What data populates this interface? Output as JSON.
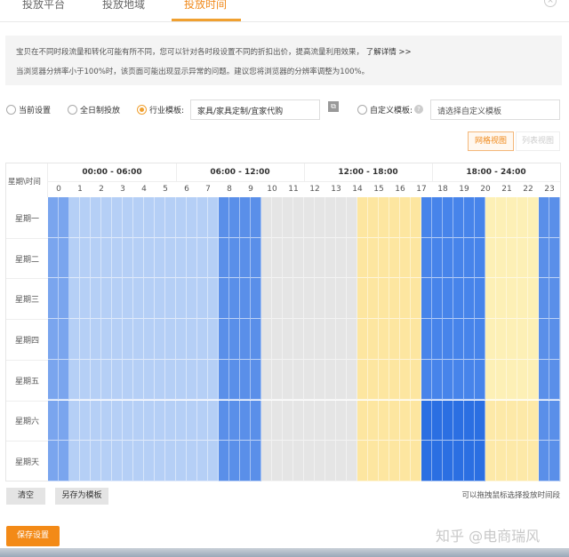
{
  "tabs": [
    {
      "label": "投放平台"
    },
    {
      "label": "投放地域"
    },
    {
      "label": "投放时间",
      "active": true
    }
  ],
  "info": {
    "line1": "宝贝在不同时段流量和转化可能有所不同，您可以针对各时段设置不同的折扣出价，提高流量利用效果，",
    "link": "了解详情 >>",
    "line2": "当浏览器分辨率小于100%时，该页面可能出现显示异常的问题。建议您将浏览器的分辨率调整为100%。"
  },
  "options": {
    "current": "当前设置",
    "fullday": "全日制投放",
    "industry": "行业模板:",
    "industry_value": "家具/家具定制/宜家代购",
    "custom": "自定义模板:",
    "custom_placeholder": "请选择自定义模板",
    "selected": "industry"
  },
  "view": {
    "grid": "网格视图",
    "list": "列表视图",
    "active": "grid"
  },
  "grid": {
    "corner": "星期\\时间",
    "ranges": [
      "00:00 - 06:00",
      "06:00 - 12:00",
      "12:00 - 18:00",
      "18:00 - 24:00"
    ],
    "hours": [
      "0",
      "1",
      "2",
      "3",
      "4",
      "5",
      "6",
      "7",
      "8",
      "9",
      "10",
      "11",
      "12",
      "13",
      "14",
      "15",
      "16",
      "17",
      "18",
      "19",
      "20",
      "21",
      "22",
      "23"
    ],
    "days": [
      "星期一",
      "星期二",
      "星期三",
      "星期四",
      "星期五",
      "星期六",
      "星期天"
    ],
    "levels": {
      "B": "#7aa5ee",
      "L": "#b5cff6",
      "M": "#5a8fe9",
      "G": "#e5e5e5",
      "Y": "#fde6a0",
      "D": "#4784ea",
      "X": "#2b6fe2",
      "y": "#fdf0b6",
      "z": "#fde9a8"
    },
    "rows": [
      "BBLLLLLLLLLLLLLLMMMMGGGGGGGGGYYYYYYDDDDDDyyyyyMM",
      "BBLLLLLLLLLLLLLLMMMMGGGGGGGGGYYYYYYDDDDDDyyyyyMM",
      "BBLLLLLLLLLLLLLLMMMMGGGGGGGGGYYYYYYDDDDDDyyyyyMM",
      "BBLLLLLLLLLLLLLLMMMMGGGGGGGGGYYYYYYDDDDDDyyyyyMM",
      "BBLLLLLLLLLLLLLLMMMMGGGGGGGGGYYYYYYDDDDDDyyyyyMM",
      "BBLLLLLLLLLLLLLLMMMMGGGGGGGGGYYYYYYXXXXXXzzzzzMM",
      "BBLLLLLLLLLLLLLLMMMMGGGGGGGGGYYYYYYXXXXXXzzzzzMM"
    ]
  },
  "actions": {
    "clear": "清空",
    "save_template": "另存为模板",
    "hint": "可以拖拽鼠标选择投放时间段",
    "save": "保存设置"
  },
  "watermark": "知乎 @电商瑞风",
  "colors": {
    "accent": "#f08a1c"
  }
}
